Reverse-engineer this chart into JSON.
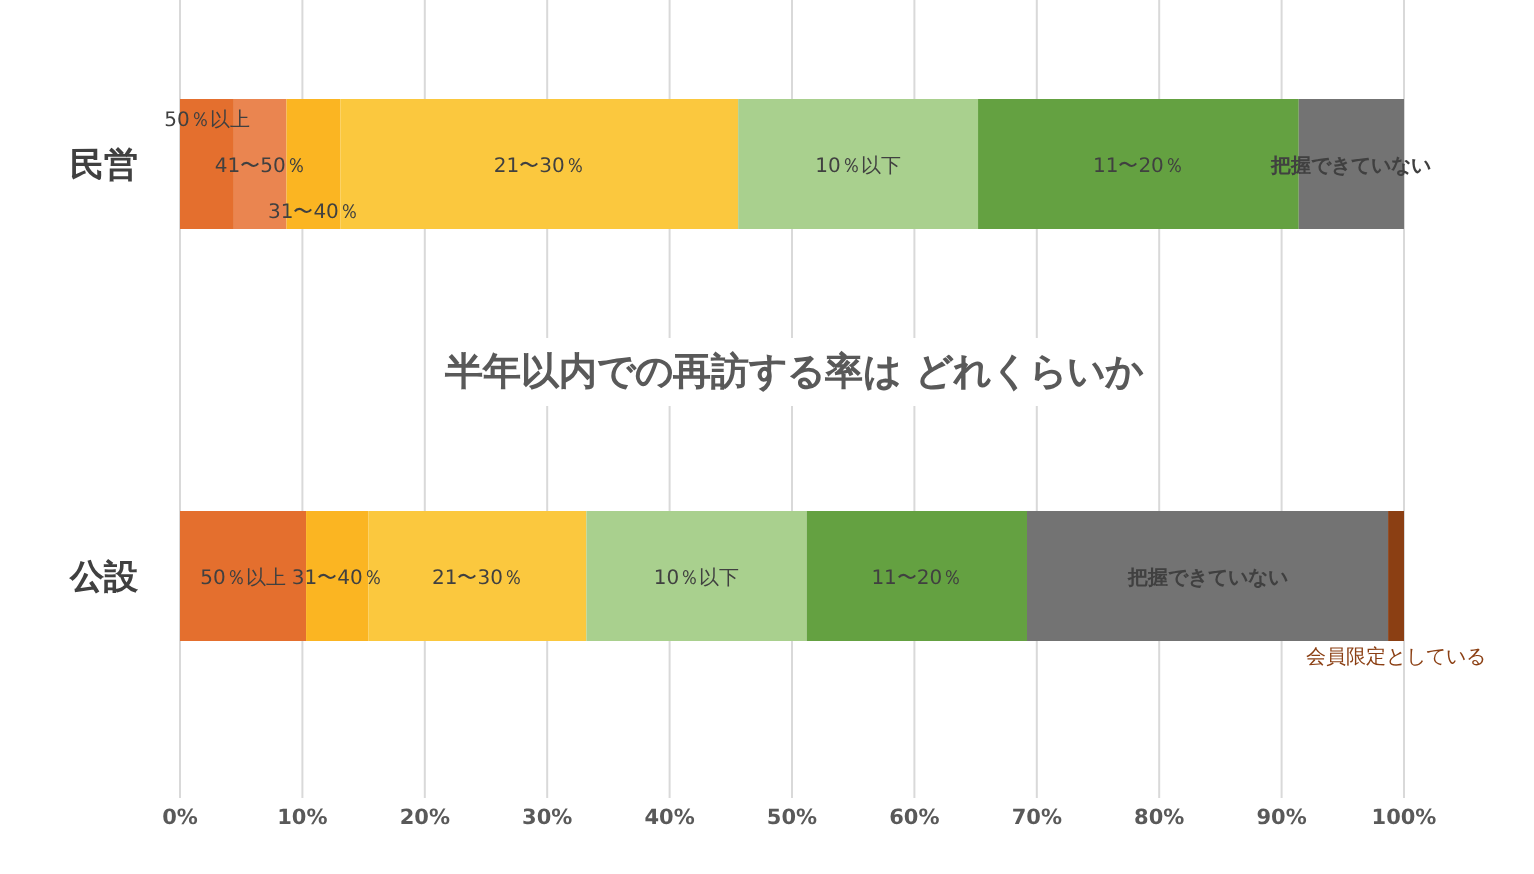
{
  "chart_data": {
    "type": "bar",
    "orientation": "horizontal",
    "stacked": true,
    "title": "半年以内での再訪する率は どれくらいか",
    "categories": [
      "民営",
      "公設"
    ],
    "series": [
      {
        "name": "50％以上",
        "color": "#e46f2e",
        "values": [
          4.4,
          10.3
        ]
      },
      {
        "name": "41〜50％",
        "color": "#ea8550",
        "values": [
          4.3,
          null
        ]
      },
      {
        "name": "31〜40％",
        "color": "#fbb522",
        "values": [
          4.4,
          5.1
        ]
      },
      {
        "name": "21〜30％",
        "color": "#fbc83e",
        "values": [
          32.5,
          17.8
        ]
      },
      {
        "name": "10％以下",
        "color": "#a9d08e",
        "values": [
          19.6,
          18.0
        ]
      },
      {
        "name": "11〜20％",
        "color": "#64a141",
        "values": [
          26.2,
          18.0
        ]
      },
      {
        "name": "把握できていない",
        "color": "#737373",
        "values": [
          8.6,
          29.5
        ]
      },
      {
        "name": "会員限定としている",
        "color": "#8b3f13",
        "values": [
          null,
          1.3
        ]
      }
    ],
    "xlim": [
      0,
      100
    ],
    "xticks": [
      {
        "value": 0,
        "label": "0%"
      },
      {
        "value": 10,
        "label": "10%"
      },
      {
        "value": 20,
        "label": "20%"
      },
      {
        "value": 30,
        "label": "30%"
      },
      {
        "value": 40,
        "label": "40%"
      },
      {
        "value": 50,
        "label": "50%"
      },
      {
        "value": 60,
        "label": "60%"
      },
      {
        "value": 70,
        "label": "70%"
      },
      {
        "value": 80,
        "label": "80%"
      },
      {
        "value": 90,
        "label": "90%"
      },
      {
        "value": 100,
        "label": "100%"
      }
    ],
    "grid": "x"
  }
}
